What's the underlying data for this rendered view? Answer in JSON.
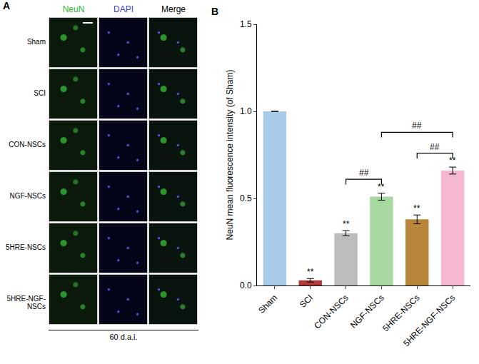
{
  "panel_a": {
    "label": "A",
    "columns": [
      "NeuN",
      "DAPI",
      "Merge"
    ],
    "rows": [
      "Sham",
      "SCI",
      "CON-NSCs",
      "NGF-NSCs",
      "5HRE-NSCs",
      "5HRE-NGF-NSCs"
    ],
    "footer": "60 d.a.i."
  },
  "chart_data": {
    "panel_label": "B",
    "type": "bar",
    "y_label": "NeuN mean fluorescence intensity (of Sham)",
    "categories": [
      "Sham",
      "SCI",
      "CON-NSCs",
      "NGF-NSCs",
      "5HRE-NSCs",
      "5HRE-NGF-NSCs"
    ],
    "values": [
      1.0,
      0.03,
      0.3,
      0.51,
      0.38,
      0.66
    ],
    "errors": [
      0,
      0.01,
      0.015,
      0.02,
      0.025,
      0.02
    ],
    "colors": [
      "#a9cbea",
      "#b03a3a",
      "#bdbdbd",
      "#a7d8a0",
      "#b8863b",
      "#f5b6d0"
    ],
    "ylim": [
      0,
      1.5
    ],
    "yticks": [
      {
        "value": 0,
        "label": "0.0"
      },
      {
        "value": 0.5,
        "label": "0.5"
      },
      {
        "value": 1,
        "label": "1.0"
      },
      {
        "value": 1.5,
        "label": "1.5"
      }
    ],
    "grid": false,
    "significance": [
      null,
      "**",
      "**",
      "**",
      "**",
      "**"
    ],
    "comparisons": [
      {
        "from": "CON-NSCs",
        "to": "NGF-NSCs",
        "label": "##"
      },
      {
        "from": "5HRE-NSCs",
        "to": "5HRE-NGF-NSCs",
        "label": "##"
      },
      {
        "from": "NGF-NSCs",
        "to": "5HRE-NGF-NSCs",
        "label": "##"
      }
    ]
  }
}
